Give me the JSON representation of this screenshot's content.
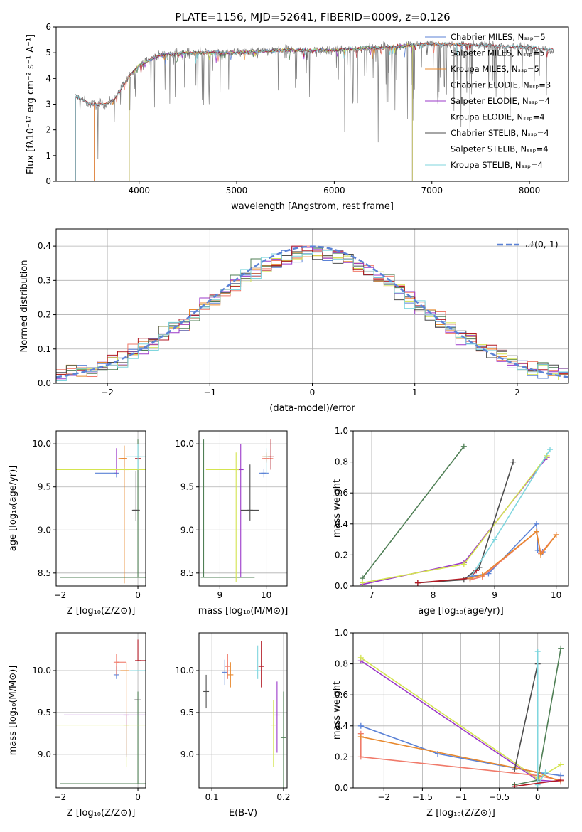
{
  "title": "PLATE=1156, MJD=52641, FIBERID=0009, z=0.126",
  "colors": {
    "chabrier_miles": "#5b82d6",
    "salpeter_miles": "#f07a6a",
    "kroupa_miles": "#e8892e",
    "chabrier_elodie": "#4f7f55",
    "salpeter_elodie": "#9b38c9",
    "kroupa_elodie": "#d4e44f",
    "chabrier_stelib": "#4d4d4d",
    "salpeter_stelib": "#b21a24",
    "kroupa_stelib": "#7fd6de",
    "gaussian": "#5b82d6",
    "data": "#808080"
  },
  "chart_data": [
    {
      "id": "spectrum",
      "type": "line",
      "xlabel": "wavelength [Angstrom, rest frame]",
      "ylabel": "Flux [fλ10⁻¹⁷ erg cm⁻² s⁻¹ A⁻¹]",
      "xlim": [
        3150,
        8400
      ],
      "ylim": [
        0,
        6
      ],
      "xticks": [
        4000,
        5000,
        6000,
        7000,
        8000
      ],
      "yticks": [
        0,
        1,
        2,
        3,
        4,
        5,
        6
      ],
      "legend_position": "top-right",
      "legend": [
        {
          "label": "Chabrier MILES, Nₛₛₚ=5",
          "color_key": "chabrier_miles"
        },
        {
          "label": "Salpeter MILES, Nₛₛₚ=5",
          "color_key": "salpeter_miles"
        },
        {
          "label": "Kroupa MILES, Nₛₛₚ=5",
          "color_key": "kroupa_miles"
        },
        {
          "label": "Chabrier ELODIE, Nₛₛₚ=3",
          "color_key": "chabrier_elodie"
        },
        {
          "label": "Salpeter ELODIE, Nₛₛₚ=4",
          "color_key": "salpeter_elodie"
        },
        {
          "label": "Kroupa ELODIE, Nₛₛₚ=4",
          "color_key": "kroupa_elodie"
        },
        {
          "label": "Chabrier STELIB, Nₛₛₚ=4",
          "color_key": "chabrier_stelib"
        },
        {
          "label": "Salpeter STELIB, Nₛₛₚ=4",
          "color_key": "salpeter_stelib"
        },
        {
          "label": "Kroupa STELIB, Nₛₛₚ=4",
          "color_key": "kroupa_stelib"
        }
      ],
      "continuum": [
        [
          3350,
          3.3
        ],
        [
          3500,
          3.0
        ],
        [
          3650,
          3.0
        ],
        [
          3750,
          3.2
        ],
        [
          3900,
          4.1
        ],
        [
          4000,
          4.5
        ],
        [
          4200,
          4.9
        ],
        [
          4500,
          5.0
        ],
        [
          5000,
          5.0
        ],
        [
          5500,
          5.1
        ],
        [
          6000,
          5.1
        ],
        [
          6500,
          5.2
        ],
        [
          7000,
          5.35
        ],
        [
          7500,
          5.3
        ],
        [
          8000,
          5.2
        ],
        [
          8250,
          5.1
        ]
      ],
      "model_ranges": [
        {
          "model": "chabrier_miles",
          "x": [
            3540,
            7420
          ]
        },
        {
          "model": "salpeter_miles",
          "x": [
            3540,
            7420
          ]
        },
        {
          "model": "kroupa_miles",
          "x": [
            3540,
            7420
          ]
        },
        {
          "model": "chabrier_elodie",
          "x": [
            3900,
            6800
          ]
        },
        {
          "model": "salpeter_elodie",
          "x": [
            3900,
            6800
          ]
        },
        {
          "model": "kroupa_elodie",
          "x": [
            3900,
            6800
          ]
        },
        {
          "model": "chabrier_stelib",
          "x": [
            3350,
            8250
          ]
        },
        {
          "model": "salpeter_stelib",
          "x": [
            3350,
            8250
          ]
        },
        {
          "model": "kroupa_stelib",
          "x": [
            3350,
            8250
          ]
        }
      ]
    },
    {
      "id": "residuals",
      "type": "step",
      "xlabel": "(data-model)/error",
      "ylabel": "Normed distribution",
      "xlim": [
        -2.5,
        2.5
      ],
      "ylim": [
        0,
        0.45
      ],
      "xticks": [
        -2,
        -1,
        0,
        1,
        2
      ],
      "yticks": [
        0.0,
        0.1,
        0.2,
        0.3,
        0.4
      ],
      "grid": true,
      "legend_position": "top-right",
      "legend": [
        {
          "label": "𝒩(0, 1)",
          "color_key": "gaussian",
          "style": "dashed"
        }
      ],
      "gaussian": {
        "mean": 0,
        "sigma": 1
      },
      "bin_width": 0.1
    },
    {
      "id": "age_vs_Z",
      "type": "errorbar",
      "xlabel": "Z [log₁₀(Z/Z⊙)]",
      "ylabel": "age  [log₁₀(age/yr)]",
      "xlim": [
        -2.1,
        0.2
      ],
      "ylim": [
        8.35,
        10.15
      ],
      "xticks": [
        -2,
        0
      ],
      "yticks": [
        8.5,
        9.0,
        9.5,
        10.0
      ],
      "grid": true,
      "points": [
        {
          "model": "chabrier_miles",
          "x": -0.55,
          "xerr": [
            0.55,
            0.0
          ],
          "y": 9.66,
          "yerr": [
            0.05,
            0.0
          ]
        },
        {
          "model": "salpeter_miles",
          "x": -0.35,
          "xerr": [
            0.1,
            0.0
          ],
          "y": 9.83,
          "yerr": [
            0.1,
            0.0
          ]
        },
        {
          "model": "kroupa_miles",
          "x": -0.35,
          "xerr": [
            0.15,
            0.0
          ],
          "y": 9.83,
          "yerr": [
            1.45,
            0.15
          ]
        },
        {
          "model": "chabrier_elodie",
          "x": 0.0,
          "xerr": [
            2.0,
            0.3
          ],
          "y": 8.45,
          "yerr": [
            0.0,
            1.6
          ]
        },
        {
          "model": "salpeter_elodie",
          "x": -0.55,
          "xerr": [
            0.0,
            0.0
          ],
          "y": 9.7,
          "yerr": [
            0.05,
            0.25
          ]
        },
        {
          "model": "kroupa_elodie",
          "x": -0.3,
          "xerr": [
            1.9,
            0.5
          ],
          "y": 9.7,
          "yerr": [
            0.0,
            0.0
          ]
        },
        {
          "model": "chabrier_stelib",
          "x": -0.05,
          "xerr": [
            0.1,
            0.1
          ],
          "y": 9.23,
          "yerr": [
            0.12,
            0.45
          ]
        },
        {
          "model": "salpeter_stelib",
          "x": 0.0,
          "xerr": [
            0.0,
            0.0
          ],
          "y": 9.83,
          "yerr": [
            0.0,
            0.0
          ]
        },
        {
          "model": "kroupa_stelib",
          "x": 0.0,
          "xerr": [
            0.3,
            0.3
          ],
          "y": 9.85,
          "yerr": [
            0.15,
            0.15
          ]
        }
      ]
    },
    {
      "id": "age_vs_mass",
      "type": "errorbar",
      "xlabel": "mass [log₁₀(M/M⊙)]",
      "ylabel": "",
      "xlim": [
        8.55,
        10.45
      ],
      "ylim": [
        8.35,
        10.15
      ],
      "xticks": [
        9,
        10
      ],
      "yticks": [
        8.5,
        9.0,
        9.5,
        10.0
      ],
      "grid": true,
      "points": [
        {
          "model": "chabrier_miles",
          "x": 9.95,
          "xerr": [
            0.1,
            0.1
          ],
          "y": 9.66,
          "yerr": [
            0.05,
            0.05
          ]
        },
        {
          "model": "salpeter_miles",
          "x": 10.0,
          "xerr": [
            0.1,
            0.15
          ],
          "y": 9.83,
          "yerr": [
            0.05,
            0.05
          ]
        },
        {
          "model": "kroupa_miles",
          "x": 10.0,
          "xerr": [
            0.1,
            0.1
          ],
          "y": 9.85,
          "yerr": [
            0.05,
            0.05
          ]
        },
        {
          "model": "chabrier_elodie",
          "x": 8.65,
          "xerr": [
            0.0,
            1.1
          ],
          "y": 8.45,
          "yerr": [
            0.0,
            1.6
          ]
        },
        {
          "model": "salpeter_elodie",
          "x": 9.45,
          "xerr": [
            0.0,
            0.0
          ],
          "y": 9.7,
          "yerr": [
            1.25,
            0.3
          ]
        },
        {
          "model": "kroupa_elodie",
          "x": 9.35,
          "xerr": [
            0.65,
            0.0
          ],
          "y": 9.7,
          "yerr": [
            1.3,
            0.2
          ]
        },
        {
          "model": "chabrier_stelib",
          "x": 9.65,
          "xerr": [
            0.2,
            0.2
          ],
          "y": 9.23,
          "yerr": [
            0.12,
            0.53
          ]
        },
        {
          "model": "salpeter_stelib",
          "x": 10.1,
          "xerr": [
            0.0,
            0.0
          ],
          "y": 9.85,
          "yerr": [
            0.15,
            0.2
          ]
        },
        {
          "model": "kroupa_stelib",
          "x": 10.0,
          "xerr": [
            0.0,
            0.0
          ],
          "y": 9.85,
          "yerr": [
            0.2,
            0.1
          ]
        }
      ]
    },
    {
      "id": "massweight_vs_age",
      "type": "line",
      "xlabel": "age  [log₁₀(age/yr)]",
      "ylabel": "mass weight",
      "xlim": [
        6.7,
        10.2
      ],
      "ylim": [
        0,
        1.0
      ],
      "xticks": [
        7,
        8,
        9,
        10
      ],
      "yticks": [
        0.0,
        0.2,
        0.4,
        0.6,
        0.8,
        1.0
      ],
      "grid": true,
      "series": [
        {
          "model": "chabrier_elodie",
          "x": [
            6.85,
            8.5
          ],
          "y": [
            0.05,
            0.9
          ]
        },
        {
          "model": "salpeter_elodie",
          "x": [
            6.85,
            8.5,
            9.85
          ],
          "y": [
            0.01,
            0.15,
            0.83
          ]
        },
        {
          "model": "kroupa_elodie",
          "x": [
            6.85,
            8.5,
            9.85
          ],
          "y": [
            0.02,
            0.14,
            0.84
          ]
        },
        {
          "model": "chabrier_stelib",
          "x": [
            7.75,
            8.5,
            8.75,
            9.3
          ],
          "y": [
            0.02,
            0.04,
            0.12,
            0.8
          ]
        },
        {
          "model": "salpeter_stelib",
          "x": [
            7.75,
            8.6,
            8.7
          ],
          "y": [
            0.02,
            0.05,
            0.1
          ]
        },
        {
          "model": "kroupa_stelib",
          "x": [
            8.6,
            9.0,
            9.9
          ],
          "y": [
            0.05,
            0.3,
            0.88
          ]
        },
        {
          "model": "chabrier_miles",
          "x": [
            8.6,
            8.9,
            9.68,
            9.7,
            9.78
          ],
          "y": [
            0.06,
            0.08,
            0.4,
            0.23,
            0.22
          ]
        },
        {
          "model": "salpeter_miles",
          "x": [
            8.6,
            8.8,
            9.68,
            9.75,
            10.0
          ],
          "y": [
            0.04,
            0.06,
            0.35,
            0.21,
            0.33
          ]
        },
        {
          "model": "kroupa_miles",
          "x": [
            8.6,
            8.8,
            9.68,
            9.75,
            10.0
          ],
          "y": [
            0.05,
            0.07,
            0.35,
            0.2,
            0.33
          ]
        }
      ]
    },
    {
      "id": "mass_vs_Z",
      "type": "errorbar",
      "xlabel": "Z [log₁₀(Z/Z⊙)]",
      "ylabel": "mass [log₁₀(M/M⊙)]",
      "xlim": [
        -2.1,
        0.2
      ],
      "ylim": [
        8.6,
        10.45
      ],
      "xticks": [
        -2,
        0
      ],
      "yticks": [
        9.0,
        9.5,
        10.0
      ],
      "grid": true,
      "points": [
        {
          "model": "chabrier_miles",
          "x": -0.55,
          "xerr": [
            0.0,
            0.0
          ],
          "y": 9.95,
          "yerr": [
            0.05,
            0.1
          ]
        },
        {
          "model": "salpeter_miles",
          "x": -0.55,
          "xerr": [
            0.0,
            0.25
          ],
          "y": 10.1,
          "yerr": [
            0.15,
            0.1
          ]
        },
        {
          "model": "kroupa_miles",
          "x": -0.3,
          "xerr": [
            0.15,
            0.0
          ],
          "y": 10.0,
          "yerr": [
            1.0,
            0.1
          ]
        },
        {
          "model": "chabrier_elodie",
          "x": 0.0,
          "xerr": [
            2.0,
            0.3
          ],
          "y": 8.65,
          "yerr": [
            0.0,
            1.1
          ]
        },
        {
          "model": "salpeter_elodie",
          "x": -0.3,
          "xerr": [
            1.6,
            0.65
          ],
          "y": 9.47,
          "yerr": [
            0.5,
            0.0
          ]
        },
        {
          "model": "kroupa_elodie",
          "x": -0.3,
          "xerr": [
            1.9,
            0.6
          ],
          "y": 9.35,
          "yerr": [
            0.5,
            0.0
          ]
        },
        {
          "model": "chabrier_stelib",
          "x": 0.0,
          "xerr": [
            0.1,
            0.0
          ],
          "y": 9.65,
          "yerr": [
            0.0,
            0.0
          ]
        },
        {
          "model": "salpeter_stelib",
          "x": 0.0,
          "xerr": [
            0.0,
            0.3
          ],
          "y": 10.12,
          "yerr": [
            0.0,
            0.25
          ]
        },
        {
          "model": "kroupa_stelib",
          "x": 0.0,
          "xerr": [
            0.2,
            0.2
          ],
          "y": 10.0,
          "yerr": [
            0.0,
            0.0
          ]
        }
      ]
    },
    {
      "id": "mass_vs_ebv",
      "type": "errorbar",
      "xlabel": "E(B-V)",
      "ylabel": "",
      "xlim": [
        0.082,
        0.205
      ],
      "ylim": [
        8.6,
        10.45
      ],
      "xticks": [
        0.1,
        0.2
      ],
      "yticks": [
        9.0,
        9.5,
        10.0
      ],
      "grid": true,
      "points": [
        {
          "model": "chabrier_stelib",
          "x": 0.092,
          "y": 9.75,
          "yerr": [
            0.2,
            0.2
          ]
        },
        {
          "model": "chabrier_miles",
          "x": 0.118,
          "y": 9.98,
          "yerr": [
            0.15,
            0.15
          ]
        },
        {
          "model": "salpeter_miles",
          "x": 0.122,
          "y": 10.05,
          "yerr": [
            0.15,
            0.15
          ]
        },
        {
          "model": "kroupa_miles",
          "x": 0.126,
          "y": 9.95,
          "yerr": [
            0.15,
            0.15
          ]
        },
        {
          "model": "kroupa_stelib",
          "x": 0.164,
          "y": 10.0,
          "yerr": [
            0.1,
            0.3
          ]
        },
        {
          "model": "salpeter_stelib",
          "x": 0.169,
          "y": 10.05,
          "yerr": [
            0.25,
            0.3
          ]
        },
        {
          "model": "kroupa_elodie",
          "x": 0.186,
          "y": 9.35,
          "yerr": [
            0.5,
            0.3
          ]
        },
        {
          "model": "salpeter_elodie",
          "x": 0.191,
          "y": 9.47,
          "yerr": [
            0.45,
            0.4
          ]
        },
        {
          "model": "chabrier_elodie",
          "x": 0.2,
          "y": 9.2,
          "yerr": [
            0.6,
            0.55
          ]
        }
      ]
    },
    {
      "id": "massweight_vs_Z",
      "type": "line",
      "xlabel": "Z [log₁₀(Z/Z⊙)]",
      "ylabel": "mass weight",
      "xlim": [
        -2.4,
        0.4
      ],
      "ylim": [
        0,
        1.0
      ],
      "xticks": [
        -2.0,
        -1.5,
        -1.0,
        -0.5,
        0.0
      ],
      "yticks": [
        0.0,
        0.2,
        0.4,
        0.6,
        0.8,
        1.0
      ],
      "grid": true,
      "series": [
        {
          "model": "salpeter_elodie",
          "x": [
            -2.3,
            0.0,
            0.3
          ],
          "y": [
            0.82,
            0.05,
            0.04
          ]
        },
        {
          "model": "kroupa_elodie",
          "x": [
            -2.3,
            0.0,
            0.3
          ],
          "y": [
            0.84,
            0.06,
            0.15
          ]
        },
        {
          "model": "chabrier_miles",
          "x": [
            -2.3,
            -1.3,
            0.0,
            0.3
          ],
          "y": [
            0.4,
            0.22,
            0.1,
            0.08
          ]
        },
        {
          "model": "salpeter_miles",
          "x": [
            -2.3,
            -2.3,
            0.0,
            0.3
          ],
          "y": [
            0.35,
            0.2,
            0.08,
            0.05
          ]
        },
        {
          "model": "kroupa_miles",
          "x": [
            -2.3,
            0.0,
            0.3
          ],
          "y": [
            0.33,
            0.1,
            0.04
          ]
        },
        {
          "model": "chabrier_stelib",
          "x": [
            -0.3,
            0.0
          ],
          "y": [
            0.12,
            0.8
          ]
        },
        {
          "model": "chabrier_elodie",
          "x": [
            -0.3,
            0.0,
            0.3
          ],
          "y": [
            0.02,
            0.05,
            0.9
          ]
        },
        {
          "model": "kroupa_stelib",
          "x": [
            0.0,
            0.0,
            0.1
          ],
          "y": [
            0.88,
            0.02,
            0.1
          ]
        },
        {
          "model": "salpeter_stelib",
          "x": [
            -0.3,
            0.3
          ],
          "y": [
            0.01,
            0.05
          ]
        }
      ]
    }
  ]
}
